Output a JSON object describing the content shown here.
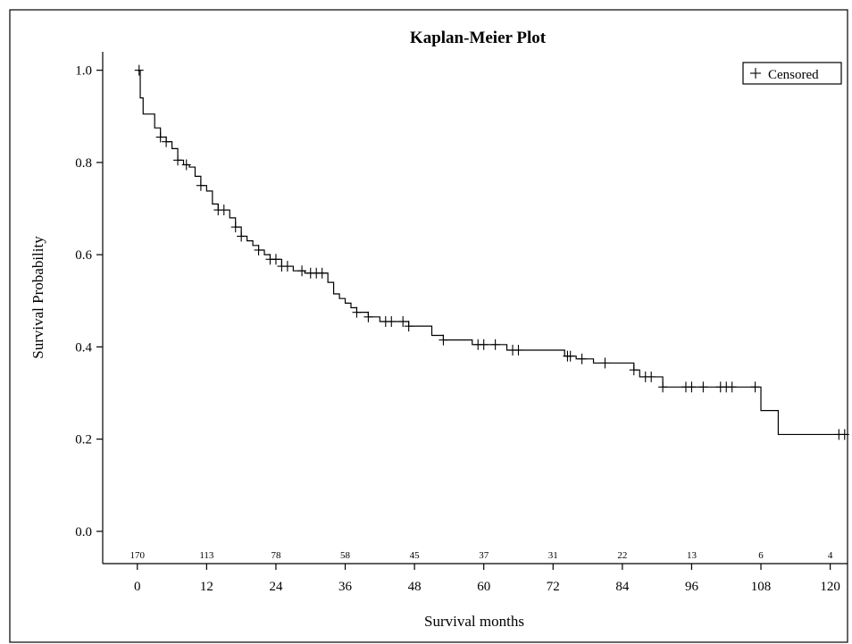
{
  "chart_data": {
    "type": "line",
    "title": "Kaplan-Meier Plot",
    "xlabel": "Survival months",
    "ylabel": "Survival Probability",
    "xlim": [
      -6,
      123
    ],
    "ylim": [
      -0.07,
      1.04
    ],
    "xticks": [
      0,
      12,
      24,
      36,
      48,
      60,
      72,
      84,
      96,
      108,
      120
    ],
    "yticks": [
      0.0,
      0.2,
      0.4,
      0.6,
      0.8,
      1.0
    ],
    "ytick_labels": [
      "0.0",
      "0.2",
      "0.4",
      "0.6",
      "0.8",
      "1.0"
    ],
    "legend": {
      "label": "Censored",
      "symbol": "+",
      "position": "top-right"
    },
    "number_at_risk": {
      "times": [
        0,
        12,
        24,
        36,
        48,
        60,
        72,
        84,
        96,
        108,
        120
      ],
      "counts": [
        "170",
        "113",
        "78",
        "58",
        "45",
        "37",
        "31",
        "22",
        "13",
        "6",
        "4"
      ]
    },
    "series": [
      {
        "step_times": [
          0,
          0.5,
          1,
          3,
          4,
          5,
          6,
          7,
          8,
          9,
          10,
          11,
          12,
          13,
          14,
          16,
          17,
          18,
          19,
          20,
          21,
          22,
          23,
          25,
          27,
          29,
          33,
          34,
          35,
          36,
          37,
          38,
          40,
          42,
          47,
          51,
          53,
          58,
          64,
          74,
          76,
          79,
          86,
          87,
          91,
          108,
          111
        ],
        "step_values": [
          1.0,
          0.94,
          0.905,
          0.875,
          0.855,
          0.845,
          0.83,
          0.805,
          0.795,
          0.79,
          0.77,
          0.75,
          0.738,
          0.71,
          0.697,
          0.68,
          0.66,
          0.64,
          0.63,
          0.62,
          0.61,
          0.6,
          0.59,
          0.575,
          0.565,
          0.56,
          0.54,
          0.515,
          0.505,
          0.495,
          0.485,
          0.475,
          0.465,
          0.455,
          0.445,
          0.425,
          0.415,
          0.405,
          0.393,
          0.38,
          0.374,
          0.365,
          0.35,
          0.335,
          0.313,
          0.262,
          0.21
        ],
        "end_time": 123,
        "censored_times": [
          0.3,
          4,
          5,
          7,
          8.5,
          11,
          14,
          15,
          17,
          18,
          21,
          23,
          24,
          25,
          26,
          28.5,
          30,
          31,
          32,
          38,
          40,
          43,
          44,
          46,
          47,
          53,
          59,
          60,
          62,
          65,
          66,
          74.5,
          75,
          77,
          81,
          86,
          88,
          89,
          91,
          95,
          96,
          98,
          101,
          102,
          103,
          107,
          121.5,
          122.5
        ]
      }
    ]
  }
}
